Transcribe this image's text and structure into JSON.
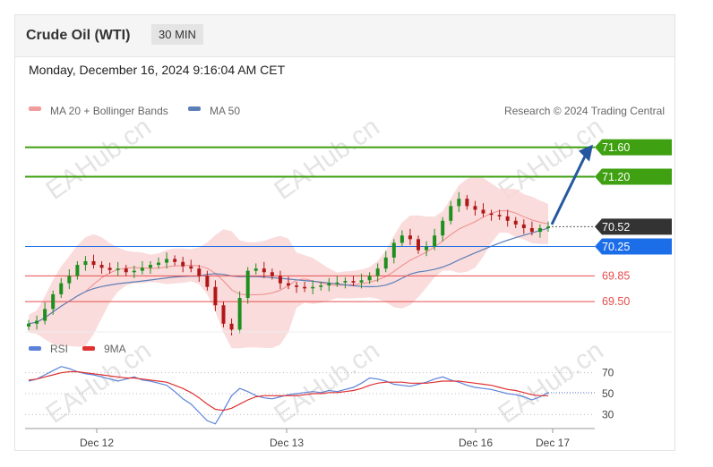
{
  "header": {
    "title": "Crude Oil (WTI)",
    "timeframe": "30 MIN"
  },
  "datetime": "Monday, December 16, 2024 9:16:04 AM CET",
  "watermark": "EAHub.cn",
  "legend": {
    "ma20": "MA 20 + Bollinger Bands",
    "ma50": "MA 50",
    "credit": "Research © 2024 Trading Central",
    "rsi": "RSI",
    "ma9": "9MA"
  },
  "colors": {
    "resistance": "#3fa012",
    "current": "#333333",
    "pivot": "#1c6ee8",
    "support": "#e84c4c",
    "candle_up": "#1f8f1f",
    "candle_down": "#b01818",
    "band": "#f9d6d6",
    "ma50": "#5d7fb8",
    "arrow": "#25589e",
    "rsi": "#5b82d8",
    "ma9": "#e03030"
  },
  "chart_data": [
    {
      "type": "candlestick",
      "title": "Crude Oil (WTI) 30 MIN",
      "ylim": [
        69.1,
        71.9
      ],
      "x_tick_labels": [
        "Dec 12",
        "Dec 13",
        "Dec 16",
        "Dec 17"
      ],
      "close": [
        69.2,
        69.24,
        69.4,
        69.6,
        69.75,
        69.85,
        70.0,
        70.05,
        70.0,
        69.96,
        69.93,
        69.95,
        69.9,
        69.92,
        69.96,
        70.0,
        70.03,
        70.08,
        70.04,
        69.98,
        69.95,
        69.85,
        69.7,
        69.45,
        69.2,
        69.12,
        69.55,
        69.92,
        69.95,
        69.9,
        69.85,
        69.75,
        69.72,
        69.7,
        69.68,
        69.7,
        69.72,
        69.75,
        69.76,
        69.78,
        69.76,
        69.79,
        69.85,
        69.95,
        70.1,
        70.3,
        70.4,
        70.35,
        70.2,
        70.25,
        70.4,
        70.6,
        70.8,
        70.9,
        70.8,
        70.75,
        70.7,
        70.68,
        70.66,
        70.6,
        70.55,
        70.5,
        70.45,
        70.5,
        70.52
      ],
      "levels": [
        {
          "label": "71.60",
          "role": "resistance",
          "value": 71.6
        },
        {
          "label": "71.20",
          "role": "resistance",
          "value": 71.2
        },
        {
          "label": "70.52",
          "role": "current",
          "value": 70.52
        },
        {
          "label": "70.25",
          "role": "pivot",
          "value": 70.25
        },
        {
          "label": "69.85",
          "role": "support",
          "value": 69.85
        },
        {
          "label": "69.50",
          "role": "support",
          "value": 69.5
        }
      ],
      "series": [
        {
          "name": "MA 20 + Bollinger Bands"
        },
        {
          "name": "MA 50"
        }
      ],
      "forecast_arrow": {
        "from": 70.55,
        "to": 71.6
      }
    },
    {
      "type": "line",
      "ylim": [
        20,
        80
      ],
      "y_ticks": [
        70,
        50,
        30
      ],
      "series": [
        {
          "name": "RSI",
          "values": [
            62,
            64,
            68,
            72,
            76,
            74,
            71,
            69,
            68,
            66,
            64,
            62,
            64,
            66,
            63,
            62,
            60,
            58,
            52,
            45,
            40,
            32,
            24,
            21,
            34,
            48,
            55,
            52,
            48,
            46,
            45,
            47,
            49,
            50,
            51,
            52,
            51,
            53,
            52,
            54,
            56,
            60,
            65,
            64,
            62,
            59,
            58,
            57,
            59,
            61,
            64,
            66,
            63,
            61,
            58,
            56,
            55,
            54,
            52,
            50,
            49,
            47,
            44,
            47,
            51
          ]
        },
        {
          "name": "9MA",
          "values": [
            63,
            64,
            66,
            68,
            70,
            71,
            71,
            70,
            69,
            68,
            67,
            66,
            65,
            65,
            64,
            63,
            62,
            61,
            58,
            55,
            51,
            46,
            40,
            35,
            34,
            36,
            40,
            44,
            47,
            48,
            48,
            48,
            48,
            48,
            49,
            50,
            50,
            51,
            51,
            52,
            53,
            55,
            58,
            60,
            61,
            61,
            61,
            60,
            60,
            60,
            61,
            62,
            62,
            62,
            61,
            60,
            59,
            58,
            56,
            54,
            53,
            51,
            49,
            48,
            48
          ]
        }
      ]
    }
  ]
}
